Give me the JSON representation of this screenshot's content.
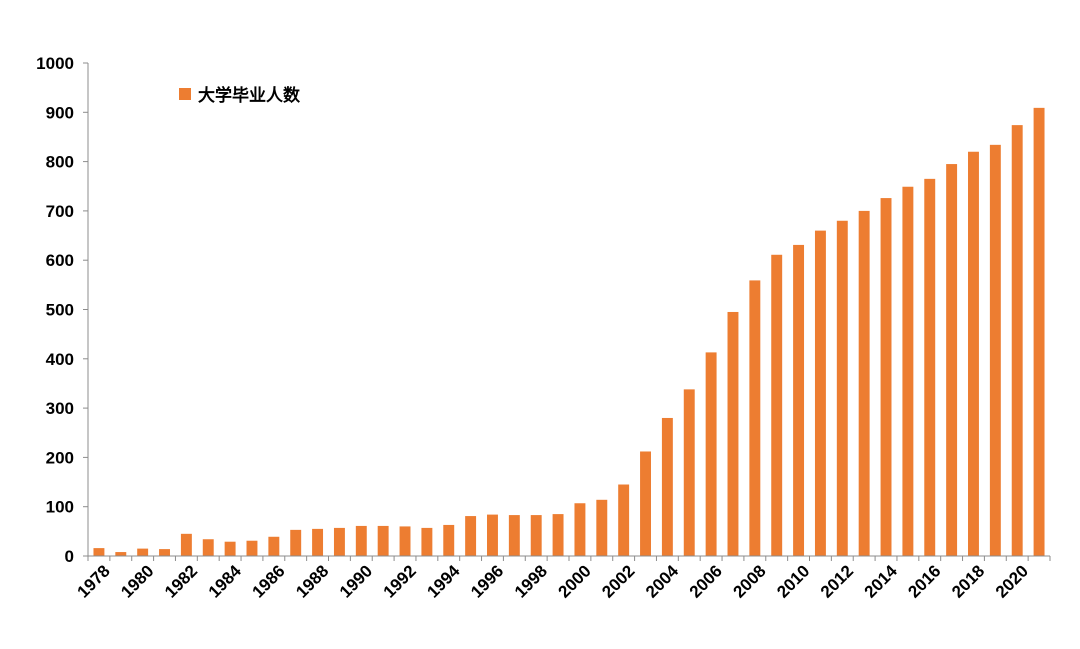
{
  "chart_data": {
    "type": "bar",
    "title": "",
    "xlabel": "",
    "ylabel": "",
    "ylim": [
      0,
      1000
    ],
    "yticks": [
      0,
      100,
      200,
      300,
      400,
      500,
      600,
      700,
      800,
      900,
      1000
    ],
    "xtick_labels": [
      "1978",
      "1980",
      "1982",
      "1984",
      "1986",
      "1988",
      "1990",
      "1992",
      "1994",
      "1996",
      "1998",
      "2000",
      "2002",
      "2004",
      "2006",
      "2008",
      "2010",
      "2012",
      "2014",
      "2016",
      "2018",
      "2020"
    ],
    "categories": [
      "1978",
      "1979",
      "1980",
      "1981",
      "1982",
      "1983",
      "1984",
      "1985",
      "1986",
      "1987",
      "1988",
      "1989",
      "1990",
      "1991",
      "1992",
      "1993",
      "1994",
      "1995",
      "1996",
      "1997",
      "1998",
      "1999",
      "2000",
      "2001",
      "2002",
      "2003",
      "2004",
      "2005",
      "2006",
      "2007",
      "2008",
      "2009",
      "2010",
      "2011",
      "2012",
      "2013",
      "2014",
      "2015",
      "2016",
      "2017",
      "2018",
      "2019",
      "2020",
      "2021"
    ],
    "series": [
      {
        "name": "大学毕业人数",
        "color": "#ED7D31",
        "values": [
          16,
          8,
          15,
          14,
          45,
          34,
          29,
          31,
          39,
          53,
          55,
          57,
          61,
          61,
          60,
          57,
          63,
          81,
          84,
          83,
          83,
          85,
          107,
          114,
          145,
          212,
          280,
          338,
          413,
          495,
          559,
          611,
          631,
          660,
          680,
          700,
          726,
          749,
          765,
          795,
          820,
          834,
          874,
          909
        ]
      }
    ],
    "grid": false,
    "legend_position": "top-left"
  }
}
